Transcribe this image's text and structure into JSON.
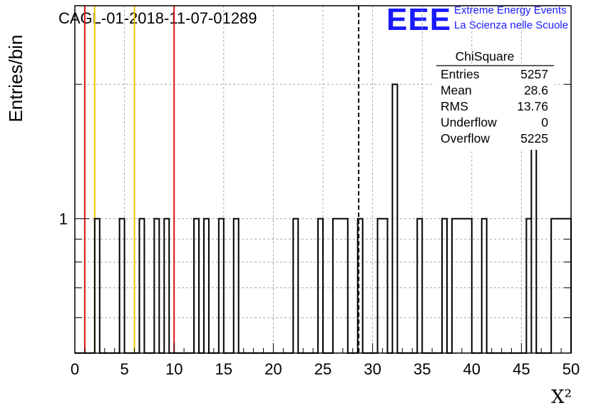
{
  "title": "CAGL-01-2018-11-07-01289",
  "logo": {
    "mark": "EEE",
    "line1": "Extreme Energy Events",
    "line2": "La Scienza nelle Scuole",
    "color": "#1a1aff"
  },
  "chart_data": {
    "type": "histogram",
    "xlabel": "X²",
    "ylabel": "Entries/bin",
    "xlim": [
      0,
      50
    ],
    "ylim": [
      0.5,
      3
    ],
    "yscale": "log",
    "grid": true,
    "x_ticks": [
      "0",
      "5",
      "10",
      "15",
      "20",
      "25",
      "30",
      "35",
      "40",
      "45",
      "50"
    ],
    "y_ticks": [
      {
        "value": 1,
        "label": "1"
      }
    ],
    "bins": [
      {
        "x0": 2.0,
        "x1": 2.5,
        "count": 1
      },
      {
        "x0": 4.5,
        "x1": 5.0,
        "count": 1
      },
      {
        "x0": 6.5,
        "x1": 7.0,
        "count": 1
      },
      {
        "x0": 8.0,
        "x1": 8.5,
        "count": 1
      },
      {
        "x0": 9.0,
        "x1": 9.5,
        "count": 1
      },
      {
        "x0": 12.0,
        "x1": 12.5,
        "count": 1
      },
      {
        "x0": 13.0,
        "x1": 13.5,
        "count": 1
      },
      {
        "x0": 14.5,
        "x1": 15.0,
        "count": 1
      },
      {
        "x0": 16.0,
        "x1": 16.5,
        "count": 1
      },
      {
        "x0": 22.0,
        "x1": 22.5,
        "count": 1
      },
      {
        "x0": 24.5,
        "x1": 25.0,
        "count": 1
      },
      {
        "x0": 26.0,
        "x1": 27.5,
        "count": 1
      },
      {
        "x0": 28.5,
        "x1": 29.0,
        "count": 1
      },
      {
        "x0": 30.5,
        "x1": 31.5,
        "count": 1
      },
      {
        "x0": 32.0,
        "x1": 32.5,
        "count": 2
      },
      {
        "x0": 34.5,
        "x1": 35.0,
        "count": 1
      },
      {
        "x0": 37.0,
        "x1": 37.5,
        "count": 1
      },
      {
        "x0": 38.0,
        "x1": 40.0,
        "count": 1
      },
      {
        "x0": 41.0,
        "x1": 41.5,
        "count": 1
      },
      {
        "x0": 45.5,
        "x1": 46.0,
        "count": 1
      },
      {
        "x0": 46.0,
        "x1": 46.5,
        "count": 2
      },
      {
        "x0": 48.0,
        "x1": 50.0,
        "count": 1
      }
    ],
    "vertical_lines": [
      {
        "x": 1,
        "color": "#dd1111",
        "style": "solid"
      },
      {
        "x": 2,
        "color": "#f5c400",
        "style": "solid"
      },
      {
        "x": 6,
        "color": "#f5c400",
        "style": "solid"
      },
      {
        "x": 10,
        "color": "#dd1111",
        "style": "solid"
      },
      {
        "x": 28.6,
        "color": "#000000",
        "style": "dashed"
      }
    ],
    "stats": {
      "title": "ChiSquare",
      "rows": [
        {
          "label": "Entries",
          "value": "5257"
        },
        {
          "label": "Mean",
          "value": "28.6"
        },
        {
          "label": "RMS",
          "value": "13.76"
        },
        {
          "label": "Underflow",
          "value": "0"
        },
        {
          "label": "Overflow",
          "value": "5225"
        }
      ]
    }
  }
}
